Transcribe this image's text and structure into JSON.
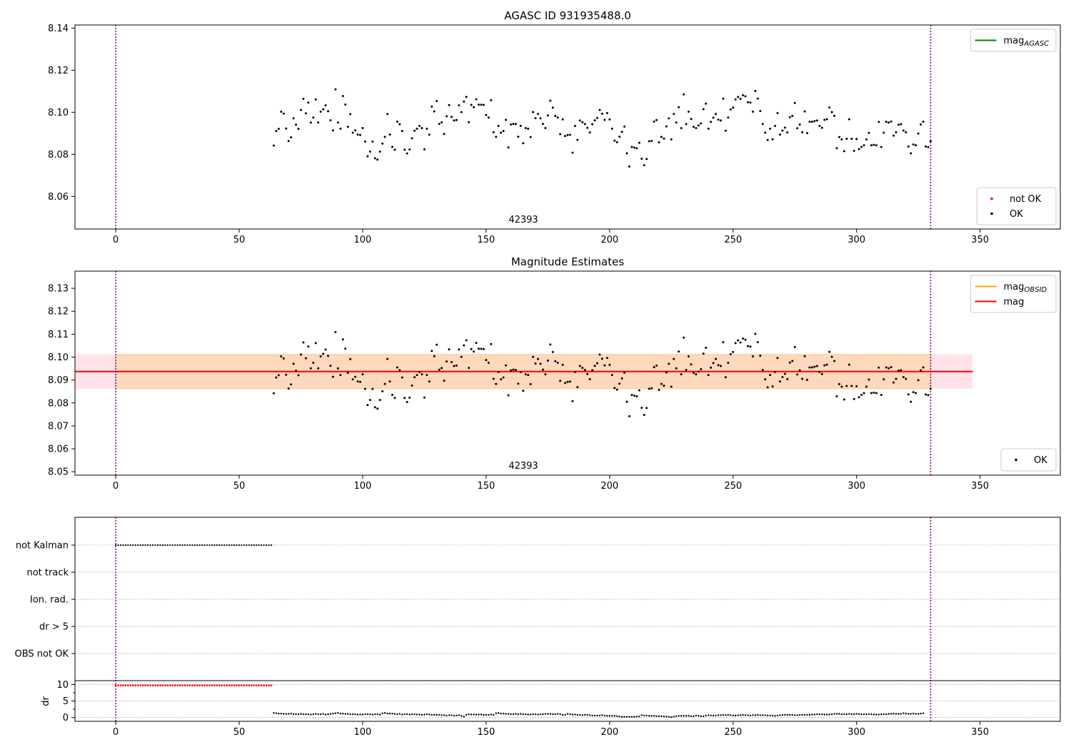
{
  "figure": {
    "title": "AGASC ID 931935488.0"
  },
  "chart_data": [
    {
      "type": "scatter",
      "title": "",
      "xlim": [
        -16.5,
        382.5
      ],
      "ylim": [
        8.0445,
        8.1415
      ],
      "xticks": [
        0,
        50,
        100,
        150,
        200,
        250,
        300,
        350
      ],
      "yticks": [
        8.06,
        8.08,
        8.1,
        8.12,
        8.14
      ],
      "yticks_text": [
        "8.06",
        "8.08",
        "8.10",
        "8.12",
        "8.14"
      ],
      "vlines": [
        0,
        330
      ],
      "annotation": {
        "x": 165,
        "text": "42393"
      },
      "legend_upper": [
        {
          "name": "mag_AGASC",
          "main": "mag",
          "sub": "AGASC",
          "color": "#008000",
          "kind": "line"
        }
      ],
      "legend_lower": [
        {
          "name": "not OK",
          "color": "#ff0000",
          "kind": "point"
        },
        {
          "name": "OK",
          "color": "#000000",
          "kind": "point"
        }
      ],
      "series": [
        {
          "name": "OK",
          "color": "#000000",
          "start": 64,
          "values": [
            8.0842,
            8.0911,
            8.0921,
            8.1003,
            8.0994,
            8.0923,
            8.0863,
            8.0881,
            8.0971,
            8.0941,
            8.0921,
            8.1011,
            8.1064,
            8.0995,
            8.1046,
            8.0951,
            8.0975,
            8.1061,
            8.0951,
            8.1003,
            8.1014,
            8.1033,
            8.1005,
            8.0962,
            8.0914,
            8.1109,
            8.0951,
            8.0922,
            8.1077,
            8.1037,
            8.0931,
            8.0991,
            8.0903,
            8.0914,
            8.0894,
            8.0892,
            8.0925,
            8.0861,
            8.0791,
            8.0813,
            8.0861,
            8.0781,
            8.0775,
            8.0813,
            8.0851,
            8.0883,
            8.0992,
            8.0894,
            8.0835,
            8.0822,
            8.0955,
            8.0943,
            8.0911,
            8.0822,
            8.0804,
            8.0823,
            8.0876,
            8.0912,
            8.0922,
            8.0935,
            8.0925,
            8.0824,
            8.0922,
            8.0894,
            8.1027,
            8.1004,
            8.1054,
            8.0945,
            8.0952,
            8.0897,
            8.0981,
            8.1034,
            8.0978,
            8.0961,
            8.0963,
            8.1033,
            8.1001,
            8.1051,
            8.1073,
            8.0953,
            8.1035,
            8.1024,
            8.1062,
            8.1036,
            8.1036,
            8.1035,
            8.0987,
            8.0975,
            8.1057,
            8.0905,
            8.0883,
            8.0935,
            8.0903,
            8.0911,
            8.0964,
            8.0833,
            8.0942,
            8.0945,
            8.0944,
            8.0884,
            8.0935,
            8.0853,
            8.0925,
            8.0922,
            8.0882,
            8.1001,
            8.0972,
            8.0992,
            8.0971,
            8.0945,
            8.0925,
            8.0985,
            8.1055,
            8.1022,
            8.0982,
            8.0975,
            8.0896,
            8.0966,
            8.0887,
            8.0892,
            8.0893,
            8.0808,
            8.0935,
            8.0869,
            8.0961,
            8.0953,
            8.0944,
            8.0926,
            8.0904,
            8.0943,
            8.0962,
            8.0973,
            8.1011,
            8.0993,
            8.0964,
            8.0996,
            8.0966,
            8.0922,
            8.0865,
            8.0858,
            8.0884,
            8.0907,
            8.0932,
            8.0805,
            8.0742,
            8.0835,
            8.0832,
            8.0829,
            8.0855,
            8.0779,
            8.0748,
            8.0778,
            8.0862,
            8.0864,
            8.0956,
            8.0963,
            8.0857,
            8.0883,
            8.0875,
            8.0933,
            8.0971,
            8.0871,
            8.0992,
            8.0951,
            8.1024,
            8.0925,
            8.1085,
            8.0944,
            8.1003,
            8.0968,
            8.0931,
            8.0925,
            8.0937,
            8.0947,
            8.1015,
            8.1041,
            8.0922,
            8.0954,
            8.0974,
            8.0992,
            8.0965,
            8.0961,
            8.1065,
            8.0912,
            8.0975,
            8.1013,
            8.1022,
            8.1061,
            8.1073,
            8.1064,
            8.1081,
            8.1076,
            8.1048,
            8.1046,
            8.1003,
            8.1101,
            8.1065,
            8.1006,
            8.0944,
            8.0903,
            8.0868,
            8.0922,
            8.0872,
            8.0935,
            8.0996,
            8.0894,
            8.0913,
            8.0927,
            8.0904,
            8.0976,
            8.0983,
            8.1044,
            8.0924,
            8.0942,
            8.0905,
            8.1004,
            8.0901,
            8.0955,
            8.0955,
            8.0958,
            8.0961,
            8.0935,
            8.0926,
            8.0964,
            8.0967,
            8.1023,
            8.1001,
            8.0983,
            8.0829,
            8.0882,
            8.0871,
            8.0815,
            8.0874,
            8.0967,
            8.0874,
            8.0817,
            8.0873,
            8.0825,
            8.0835,
            8.0843,
            8.0871,
            8.0902,
            8.0843,
            8.0845,
            8.0843,
            8.0954,
            8.0835,
            8.0903,
            8.0955,
            8.0951,
            8.0956,
            8.0889,
            8.0905,
            8.0941,
            8.0943,
            8.0913,
            8.0905,
            8.0837,
            8.0805,
            8.0847,
            8.0843,
            8.0899,
            8.0942,
            8.0955,
            8.0837,
            8.0834,
            8.0862
          ]
        }
      ]
    },
    {
      "type": "scatter",
      "title": "Magnitude Estimates",
      "xlim": [
        -16.5,
        382.5
      ],
      "ylim": [
        8.0485,
        8.1375
      ],
      "xticks": [
        0,
        50,
        100,
        150,
        200,
        250,
        300,
        350
      ],
      "yticks": [
        8.05,
        8.06,
        8.07,
        8.08,
        8.09,
        8.1,
        8.11,
        8.12,
        8.13
      ],
      "yticks_text": [
        "8.05",
        "8.06",
        "8.07",
        "8.08",
        "8.09",
        "8.10",
        "8.11",
        "8.12",
        "8.13"
      ],
      "vlines": [
        0,
        330
      ],
      "annotation": {
        "x": 165,
        "text": "42393"
      },
      "mag_level": 8.0937,
      "mag_band": [
        8.0862,
        8.1012
      ],
      "mag_band_x": [
        -16.5,
        347
      ],
      "mag_obsid_band_x": [
        0,
        330
      ],
      "legend_upper": [
        {
          "name": "mag_OBSID",
          "main": "mag",
          "sub": "OBSID",
          "color": "#ffa500",
          "kind": "line"
        },
        {
          "name": "mag",
          "main": "mag",
          "sub": "",
          "color": "#ff0000",
          "kind": "line"
        }
      ],
      "legend_lower": [
        {
          "name": "OK",
          "color": "#000000",
          "kind": "point"
        }
      ],
      "series_ref": 0
    },
    {
      "type": "scatter",
      "title": "",
      "xlim": [
        -16.5,
        382.5
      ],
      "xticks": [
        0,
        50,
        100,
        150,
        200,
        250,
        300,
        350
      ],
      "vlines": [
        0,
        330
      ],
      "flag_labels": [
        "not Kalman",
        "not track",
        "Ion. rad.",
        "dr > 5",
        "OBS not OK"
      ],
      "flag_not_kalman_x": [
        0,
        63
      ],
      "dr_ylabel": "dr",
      "dr_ylim": [
        -0.5,
        10.5
      ],
      "dr_yticks": [
        0,
        5,
        10
      ],
      "dr_yticks_text": [
        "0",
        "5",
        "10"
      ],
      "dr_red_level": 9.7,
      "dr_red_x": [
        0,
        63
      ],
      "dr_values_start": 64,
      "dr_values": [
        1.4,
        1.3,
        1.2,
        1.2,
        1.1,
        1.1,
        1.1,
        1.2,
        1.0,
        1.0,
        1.0,
        1.1,
        1.0,
        1.0,
        1.0,
        0.9,
        1.0,
        1.1,
        1.0,
        1.0,
        1.1,
        0.9,
        1.0,
        1.1,
        1.2,
        1.3,
        1.4,
        1.2,
        1.2,
        1.1,
        1.1,
        1.0,
        1.0,
        1.0,
        0.9,
        0.9,
        0.9,
        1.0,
        1.0,
        1.0,
        0.9,
        1.0,
        1.0,
        0.9,
        1.3,
        1.4,
        1.2,
        1.2,
        1.2,
        1.1,
        1.0,
        1.1,
        0.9,
        1.0,
        1.0,
        0.9,
        1.0,
        1.0,
        0.9,
        0.9,
        0.8,
        0.9,
        1.0,
        0.9,
        0.8,
        0.8,
        0.8,
        0.8,
        0.7,
        0.7,
        0.6,
        0.7,
        0.7,
        0.6,
        0.6,
        0.7,
        0.5,
        0.3,
        0.8,
        1.0,
        0.9,
        0.9,
        0.9,
        0.9,
        0.9,
        0.8,
        0.8,
        0.8,
        0.9,
        0.8,
        1.3,
        1.4,
        1.2,
        1.2,
        1.1,
        1.1,
        1.0,
        1.0,
        1.1,
        1.0,
        1.1,
        1.0,
        1.0,
        0.9,
        0.9,
        1.0,
        1.0,
        0.9,
        1.0,
        1.0,
        1.1,
        1.1,
        1.1,
        1.0,
        1.0,
        1.1,
        1.0,
        0.8,
        0.8,
        1.1,
        1.0,
        0.9,
        0.9,
        0.8,
        0.8,
        0.7,
        0.8,
        0.8,
        0.7,
        0.6,
        0.6,
        0.6,
        0.6,
        0.7,
        0.6,
        0.5,
        0.5,
        0.5,
        0.5,
        0.4,
        0.3,
        0.2,
        0.2,
        0.2,
        0.2,
        0.2,
        0.2,
        0.3,
        0.3,
        0.7,
        0.6,
        0.6,
        0.5,
        0.5,
        0.5,
        0.4,
        0.4,
        0.4,
        0.3,
        0.3,
        0.2,
        0.1,
        0.3,
        0.4,
        0.5,
        0.5,
        0.5,
        0.5,
        0.5,
        0.4,
        0.4,
        0.6,
        0.5,
        0.4,
        0.4,
        0.6,
        0.7,
        0.6,
        0.6,
        0.6,
        0.7,
        0.7,
        0.8,
        0.7,
        0.8,
        0.7,
        0.6,
        0.6,
        0.7,
        0.7,
        0.8,
        0.7,
        0.7,
        0.6,
        0.7,
        0.7,
        0.8,
        0.7,
        0.7,
        0.7,
        0.6,
        0.6,
        0.6,
        0.5,
        0.6,
        0.7,
        0.8,
        0.8,
        0.8,
        0.8,
        0.8,
        0.7,
        0.7,
        0.8,
        0.8,
        0.8,
        0.8,
        0.8,
        0.9,
        0.9,
        1.0,
        1.0,
        1.0,
        0.9,
        0.9,
        0.9,
        1.0,
        1.1,
        1.1,
        1.1,
        1.0,
        1.0,
        1.0,
        1.1,
        1.0,
        1.0,
        1.1,
        1.0,
        1.0,
        1.0,
        1.0,
        1.0,
        1.0,
        0.9,
        0.9,
        0.9,
        1.0,
        1.0,
        1.0,
        1.1,
        1.1,
        1.2,
        1.1,
        1.1,
        1.1,
        1.3,
        1.2,
        1.1,
        1.1,
        1.2,
        1.1,
        1.1,
        1.2,
        1.3
      ]
    }
  ]
}
